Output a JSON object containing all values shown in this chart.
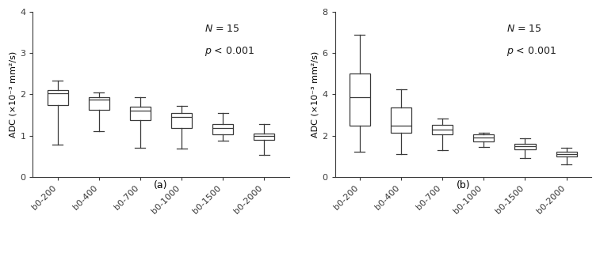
{
  "panel_a": {
    "categories": [
      "b0-200",
      "b0-400",
      "b0-700",
      "b0-1000",
      "b0-1500",
      "b0-2000"
    ],
    "boxes": [
      {
        "whislo": 0.78,
        "q1": 1.73,
        "med": 2.02,
        "q3": 2.1,
        "whishi": 2.33
      },
      {
        "whislo": 1.1,
        "q1": 1.62,
        "med": 1.88,
        "q3": 1.93,
        "whishi": 2.05
      },
      {
        "whislo": 0.7,
        "q1": 1.37,
        "med": 1.6,
        "q3": 1.7,
        "whishi": 1.93
      },
      {
        "whislo": 0.68,
        "q1": 1.18,
        "med": 1.45,
        "q3": 1.55,
        "whishi": 1.72
      },
      {
        "whislo": 0.88,
        "q1": 1.03,
        "med": 1.18,
        "q3": 1.28,
        "whishi": 1.55
      },
      {
        "whislo": 0.53,
        "q1": 0.9,
        "med": 1.0,
        "q3": 1.05,
        "whishi": 1.28
      }
    ],
    "ylim": [
      0,
      4
    ],
    "yticks": [
      0,
      1,
      2,
      3,
      4
    ],
    "ylabel": "ADC (×10⁻³ mm²/s)",
    "label": "(a)"
  },
  "panel_b": {
    "categories": [
      "b0-200",
      "b0-400",
      "b0-700",
      "b0-1000",
      "b0-1500",
      "b0-2000"
    ],
    "boxes": [
      {
        "whislo": 1.2,
        "q1": 2.5,
        "med": 3.88,
        "q3": 5.0,
        "whishi": 6.88
      },
      {
        "whislo": 1.12,
        "q1": 2.12,
        "med": 2.5,
        "q3": 3.35,
        "whishi": 4.25
      },
      {
        "whislo": 1.28,
        "q1": 2.05,
        "med": 2.28,
        "q3": 2.52,
        "whishi": 2.82
      },
      {
        "whislo": 1.45,
        "q1": 1.7,
        "med": 1.9,
        "q3": 2.05,
        "whishi": 2.12
      },
      {
        "whislo": 0.92,
        "q1": 1.35,
        "med": 1.47,
        "q3": 1.6,
        "whishi": 1.85
      },
      {
        "whislo": 0.6,
        "q1": 1.0,
        "med": 1.1,
        "q3": 1.2,
        "whishi": 1.4
      }
    ],
    "ylim": [
      0,
      8
    ],
    "yticks": [
      0,
      2,
      4,
      6,
      8
    ],
    "ylabel": "ADC (×10⁻³ mm²/s)",
    "label": "(b)"
  },
  "box_facecolor": "#ffffff",
  "box_edgecolor": "#3a3a3a",
  "median_color": "#3a3a3a",
  "whisker_color": "#3a3a3a",
  "cap_color": "#3a3a3a",
  "linewidth": 0.9,
  "box_width": 0.5,
  "figure_bg": "#ffffff",
  "axes_bg": "#ffffff",
  "tick_fontsize": 8,
  "ylabel_fontsize": 8,
  "annot_fontsize": 9,
  "label_fontsize": 9
}
